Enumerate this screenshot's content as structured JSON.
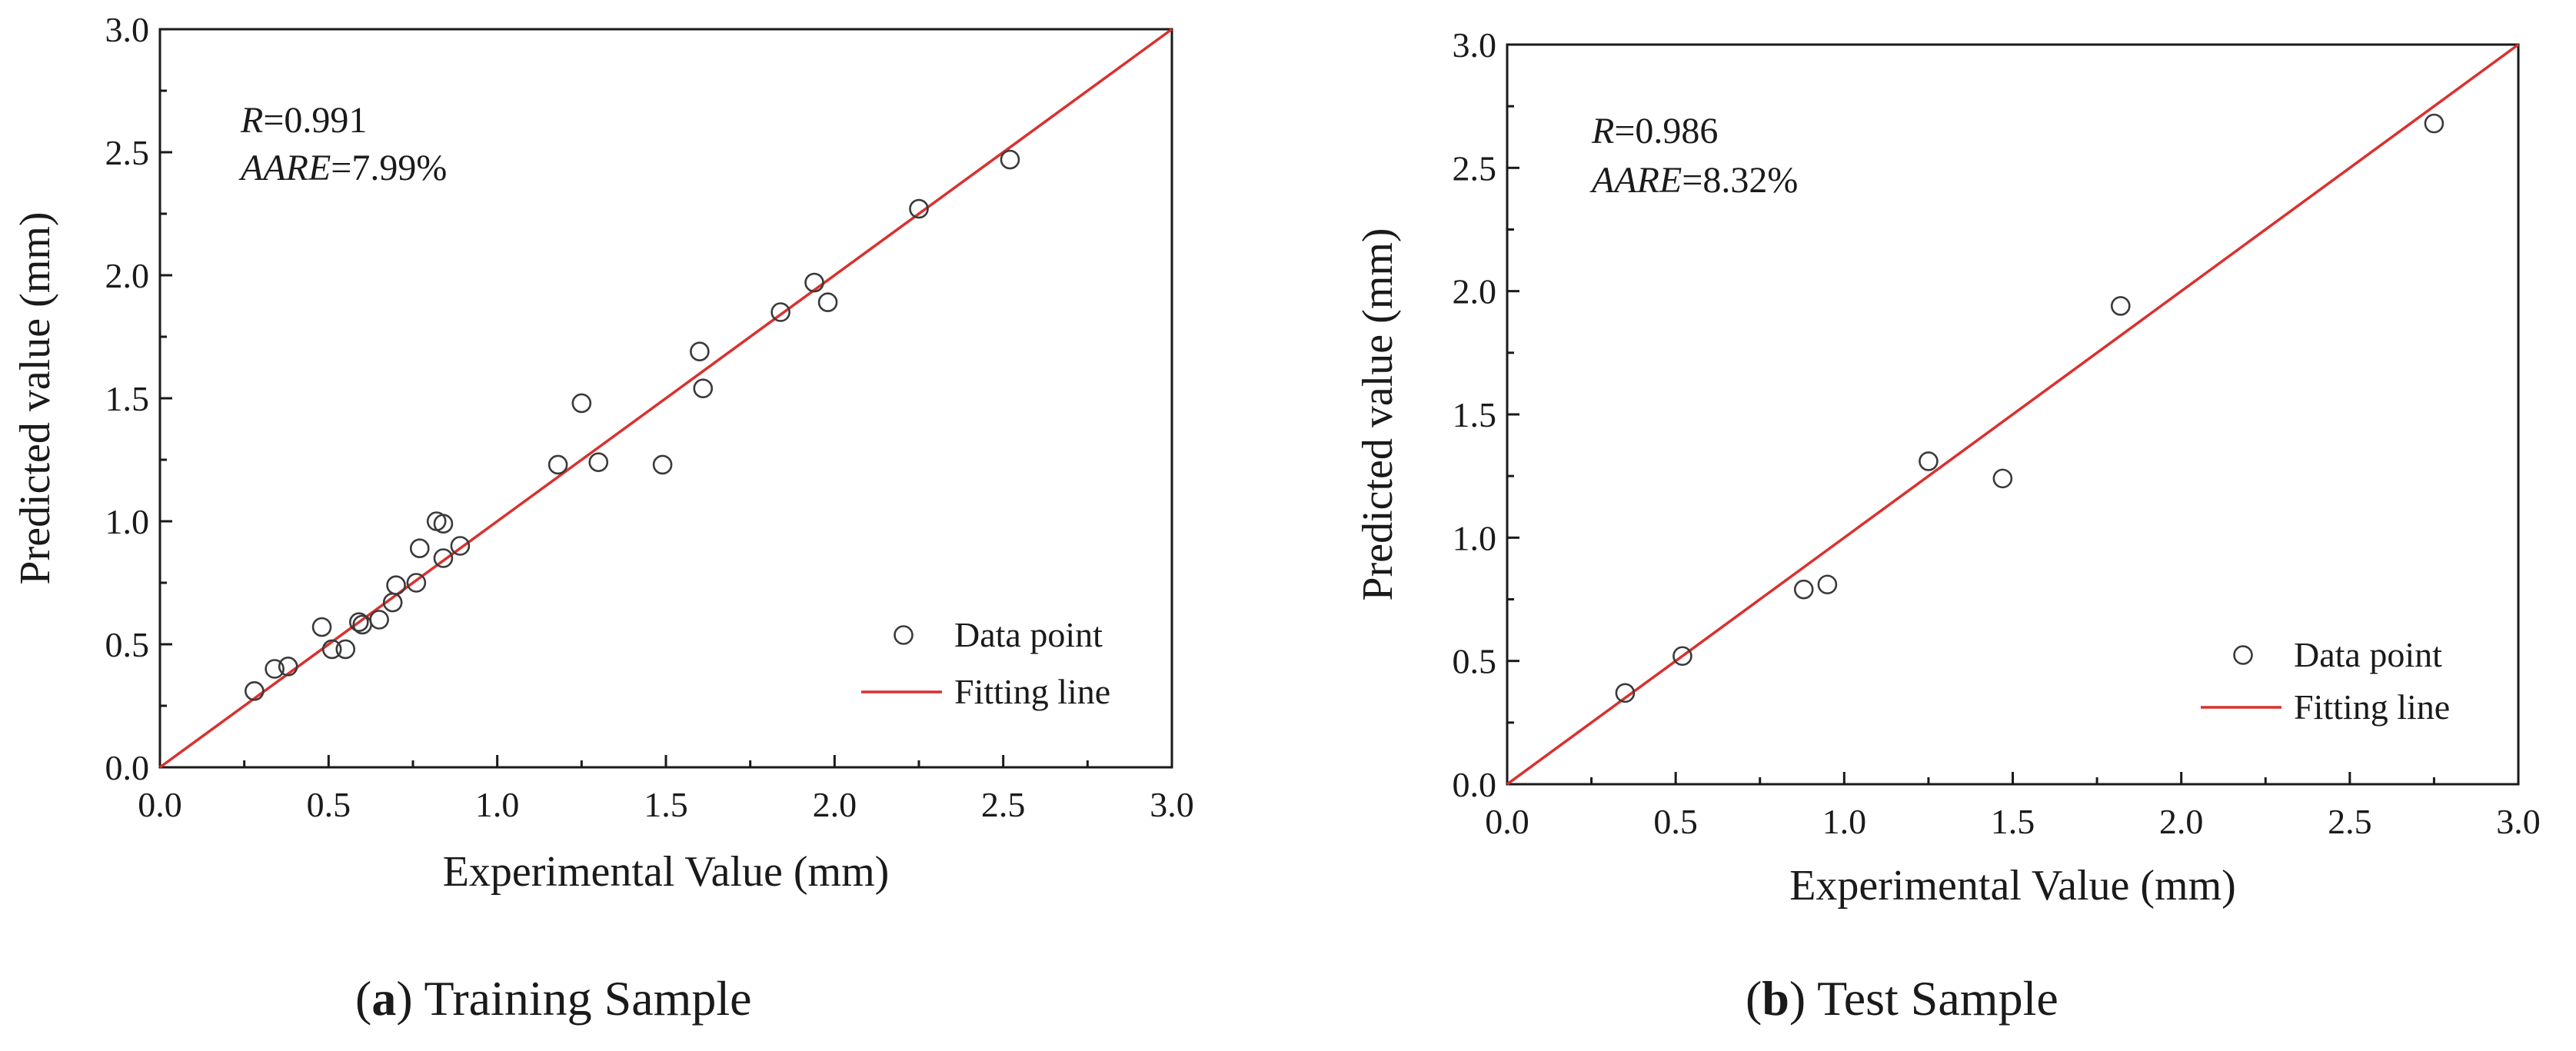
{
  "chart_data": [
    {
      "type": "scatter",
      "caption_letter": "a",
      "caption_text": "Training Sample",
      "xlabel": "Experimental Value (mm)",
      "ylabel": "Predicted value (mm)",
      "xlim": [
        0.0,
        3.0
      ],
      "ylim": [
        0.0,
        3.0
      ],
      "xticks": [
        "0.0",
        "0.5",
        "1.0",
        "1.5",
        "2.0",
        "2.5",
        "3.0"
      ],
      "yticks": [
        "0.0",
        "0.5",
        "1.0",
        "1.5",
        "2.0",
        "2.5",
        "3.0"
      ],
      "stats": {
        "r_label": "R",
        "r_value": "=0.991",
        "aare_label": "AARE",
        "aare_value": "=7.99%"
      },
      "legend": {
        "points_label": "Data point",
        "line_label": "Fitting line",
        "position": "bottom-right"
      },
      "fit_line": {
        "x": [
          0,
          3
        ],
        "y": [
          0,
          3
        ]
      },
      "series": [
        {
          "name": "Data point",
          "x": [
            0.28,
            0.34,
            0.38,
            0.48,
            0.51,
            0.55,
            0.59,
            0.6,
            0.65,
            0.69,
            0.7,
            0.76,
            0.77,
            0.82,
            0.84,
            0.84,
            0.89,
            1.18,
            1.25,
            1.3,
            1.49,
            1.6,
            1.61,
            1.84,
            1.94,
            1.98,
            2.25,
            2.52
          ],
          "y": [
            0.31,
            0.4,
            0.41,
            0.57,
            0.48,
            0.48,
            0.59,
            0.58,
            0.6,
            0.67,
            0.74,
            0.75,
            0.89,
            1.0,
            0.99,
            0.85,
            0.9,
            1.23,
            1.48,
            1.24,
            1.23,
            1.69,
            1.54,
            1.85,
            1.97,
            1.89,
            2.27,
            2.47
          ]
        }
      ]
    },
    {
      "type": "scatter",
      "caption_letter": "b",
      "caption_text": "Test Sample",
      "xlabel": "Experimental Value (mm)",
      "ylabel": "Predicted value (mm)",
      "xlim": [
        0.0,
        3.0
      ],
      "ylim": [
        0.0,
        3.0
      ],
      "xticks": [
        "0.0",
        "0.5",
        "1.0",
        "1.5",
        "2.0",
        "2.5",
        "3.0"
      ],
      "yticks": [
        "0.0",
        "0.5",
        "1.0",
        "1.5",
        "2.0",
        "2.5",
        "3.0"
      ],
      "stats": {
        "r_label": "R",
        "r_value": "=0.986",
        "aare_label": "AARE",
        "aare_value": "=8.32%"
      },
      "legend": {
        "points_label": "Data point",
        "line_label": "Fitting line",
        "position": "bottom-right"
      },
      "fit_line": {
        "x": [
          0,
          3
        ],
        "y": [
          0,
          3
        ]
      },
      "series": [
        {
          "name": "Data point",
          "x": [
            0.35,
            0.52,
            0.88,
            0.95,
            1.25,
            1.47,
            1.82,
            2.75
          ],
          "y": [
            0.37,
            0.52,
            0.79,
            0.81,
            1.31,
            1.24,
            1.94,
            2.68
          ]
        }
      ]
    }
  ]
}
